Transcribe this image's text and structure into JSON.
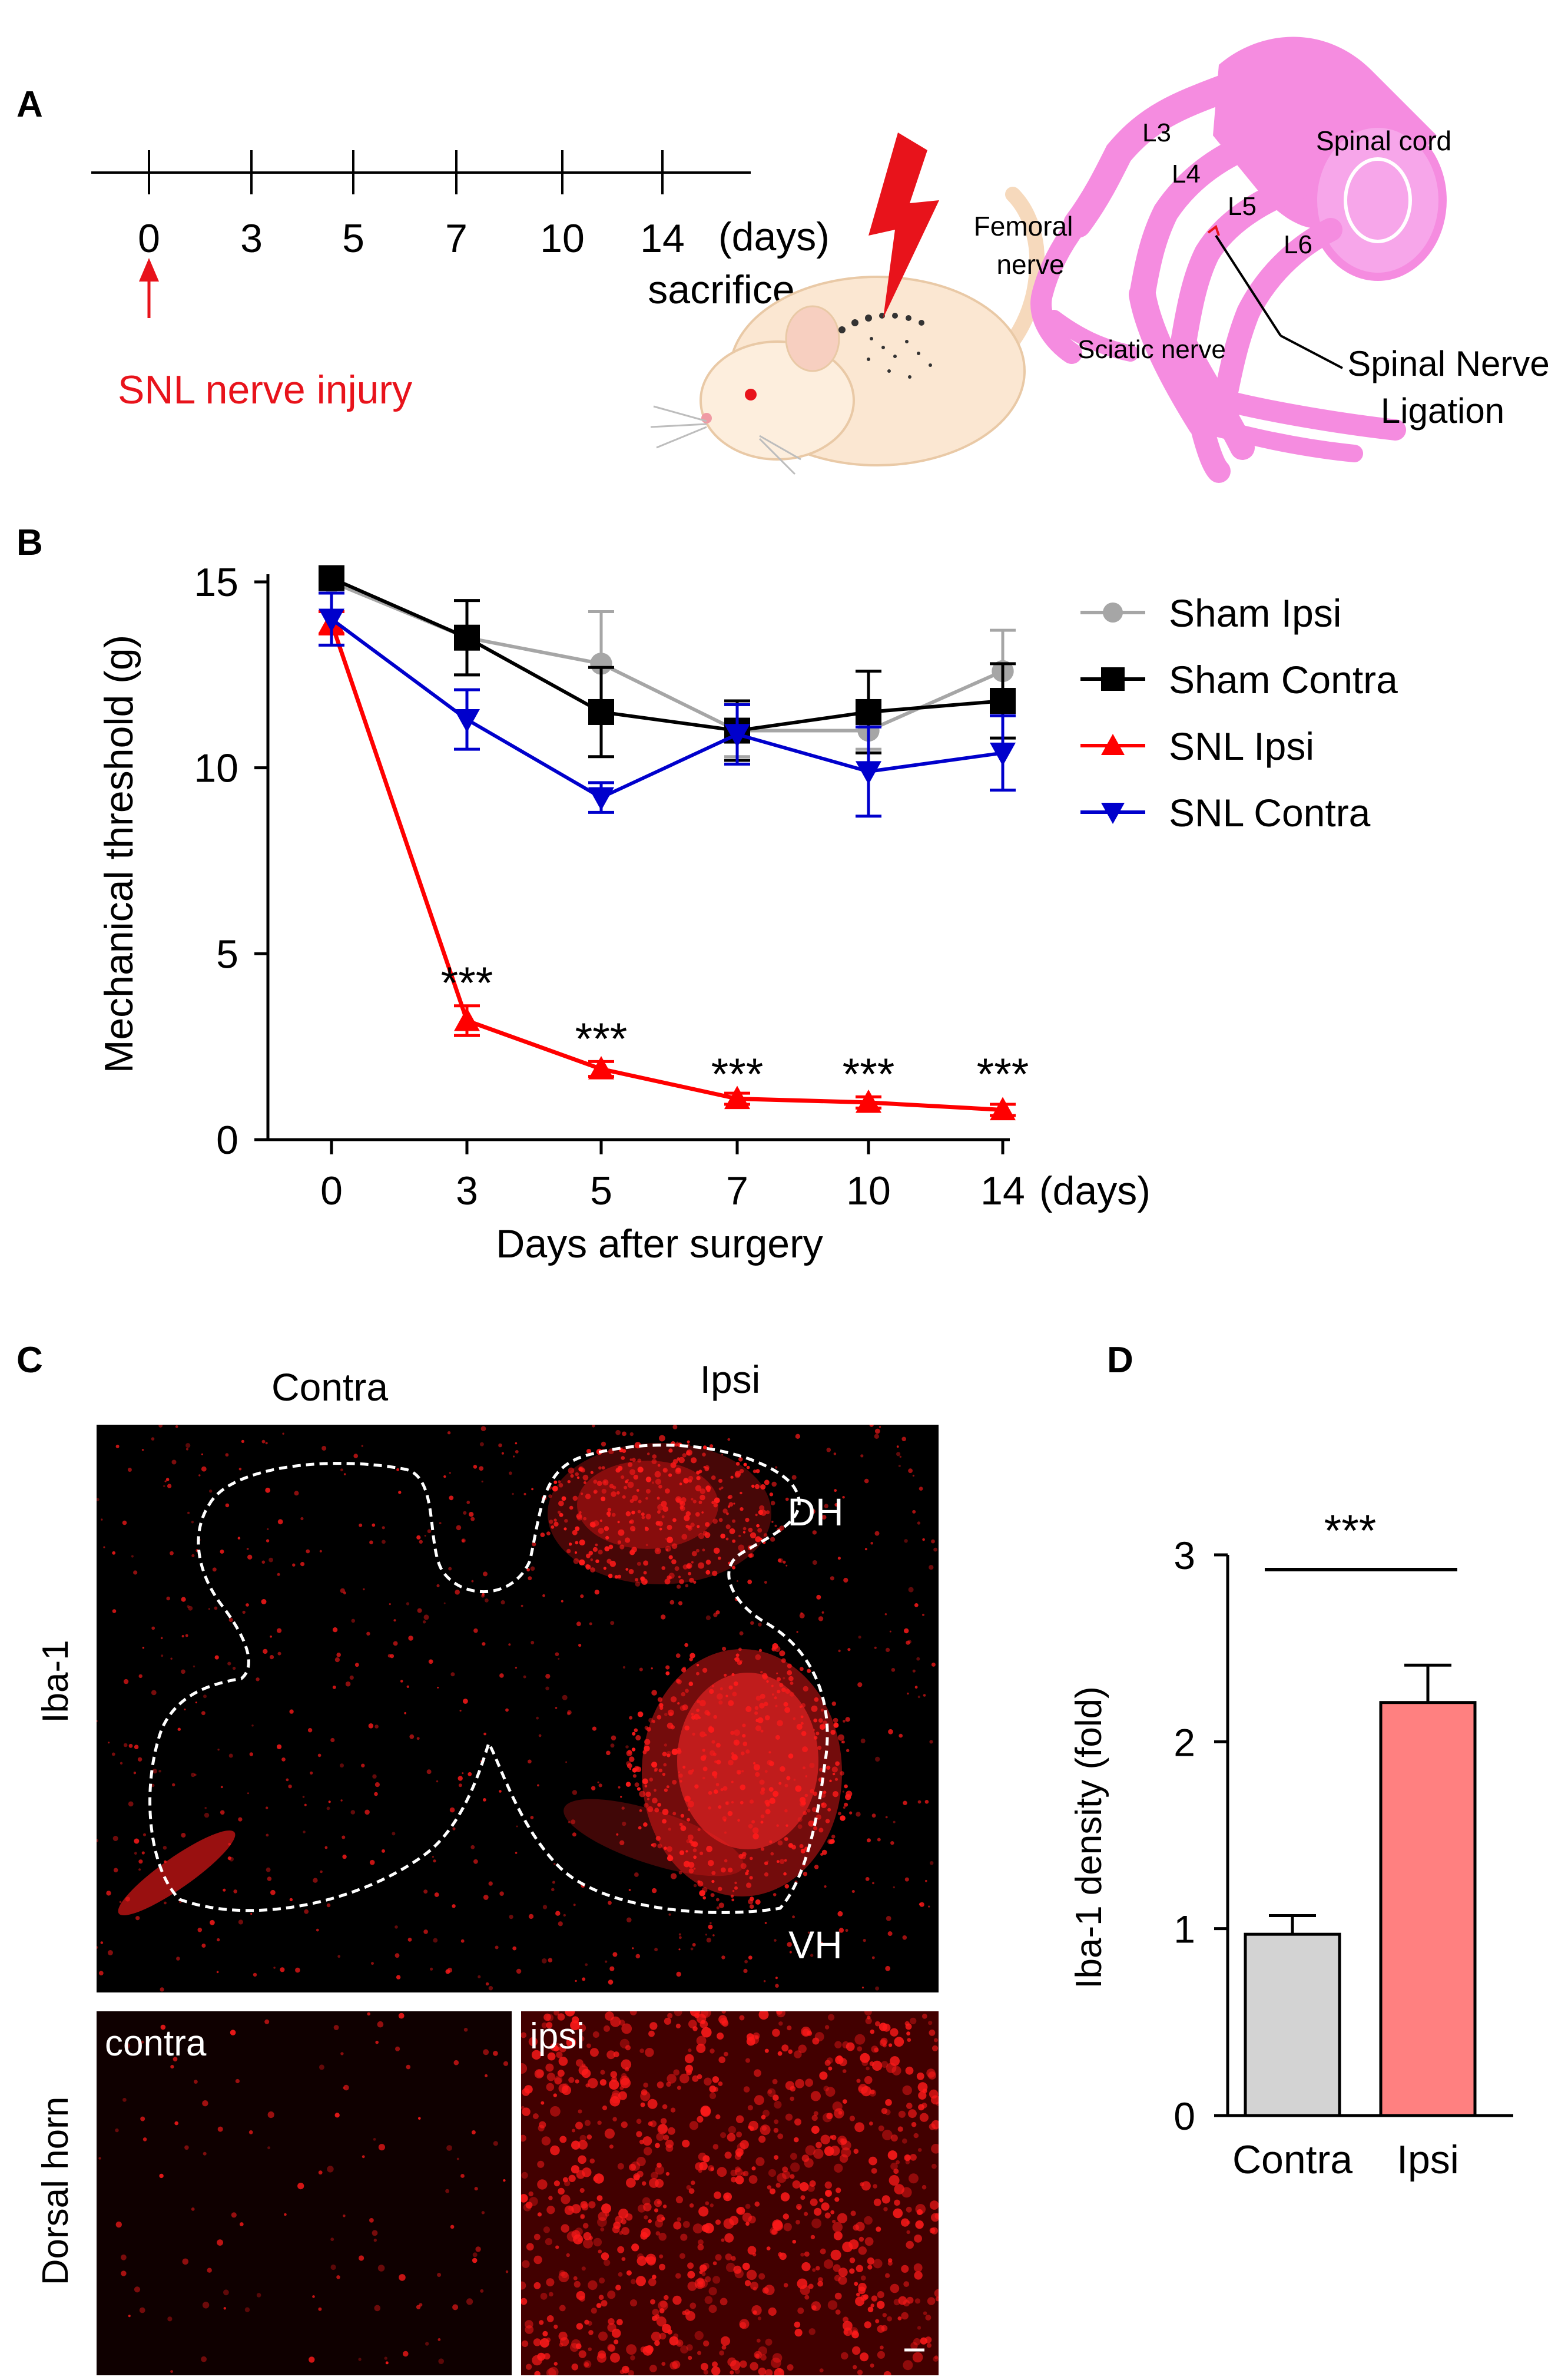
{
  "panels": {
    "A": "A",
    "B": "B",
    "C": "C",
    "D": "D"
  },
  "panel_a": {
    "ticks": [
      "0",
      "3",
      "5",
      "7",
      "10",
      "14"
    ],
    "unit": "(days)",
    "sacrifice": "sacrifice",
    "injury_label": "SNL nerve injury",
    "anatomy": {
      "l3": "L3",
      "l4": "L4",
      "l5": "L5",
      "l6": "L6",
      "spinal_cord": "Spinal cord",
      "femoral_1": "Femoral",
      "femoral_2": "nerve",
      "sciatic": "Sciatic nerve",
      "ligation_1": "Spinal Nerve",
      "ligation_2": "Ligation"
    },
    "colors": {
      "anatomy": "#f58ce0",
      "injury": "#e8131b",
      "mouse": "#fbe7d2"
    }
  },
  "panel_c": {
    "col_contra": "Contra",
    "col_ipsi": "Ipsi",
    "row_label": "Iba-1",
    "dh": "DH",
    "vh": "VH",
    "bottom_row_label": "Dorsal horn",
    "sub_contra": "contra",
    "sub_ipsi": "ipsi",
    "colors": {
      "stain": "#ff1a1a",
      "background": "#000000"
    }
  },
  "chart_data": [
    {
      "type": "line",
      "panel": "B",
      "x": [
        0,
        3,
        5,
        7,
        10,
        14
      ],
      "x_tick_labels": [
        "0",
        "3",
        "5",
        "7",
        "10",
        "14"
      ],
      "x_unit": "(days)",
      "xlabel": "Days after surgery",
      "ylabel": "Mechanical threshold  (g)",
      "ylim": [
        0,
        15
      ],
      "y_ticks": [
        "0",
        "5",
        "10",
        "15"
      ],
      "legend_position": "right",
      "series": [
        {
          "name": "Sham Ipsi",
          "marker": "circle",
          "color": "#a6a6a6",
          "values": [
            15.0,
            13.5,
            12.8,
            11.0,
            11.0,
            12.6
          ],
          "errors": [
            0.3,
            1.0,
            1.4,
            0.7,
            0.5,
            1.1
          ]
        },
        {
          "name": "Sham Contra",
          "marker": "square",
          "color": "#000000",
          "values": [
            15.1,
            13.5,
            11.5,
            11.0,
            11.5,
            11.8
          ],
          "errors": [
            0.2,
            1.0,
            1.2,
            0.8,
            1.1,
            1.0
          ]
        },
        {
          "name": "SNL Ipsi",
          "marker": "triangle-up",
          "color": "#ff0000",
          "values": [
            13.9,
            3.2,
            1.9,
            1.1,
            1.0,
            0.8
          ],
          "errors": [
            0.3,
            0.4,
            0.2,
            0.15,
            0.15,
            0.15
          ]
        },
        {
          "name": "SNL Contra",
          "marker": "triangle-down",
          "color": "#0000cc",
          "values": [
            14.0,
            11.3,
            9.2,
            10.9,
            9.9,
            10.4
          ],
          "errors": [
            0.7,
            0.8,
            0.4,
            0.8,
            1.2,
            1.0
          ]
        }
      ],
      "significance": [
        {
          "x": 3,
          "label": "***"
        },
        {
          "x": 5,
          "label": "***"
        },
        {
          "x": 7,
          "label": "***"
        },
        {
          "x": 10,
          "label": "***"
        },
        {
          "x": 14,
          "label": "***"
        }
      ]
    },
    {
      "type": "bar",
      "panel": "D",
      "categories": [
        "Contra",
        "Ipsi"
      ],
      "values": [
        0.97,
        2.21
      ],
      "errors": [
        0.1,
        0.2
      ],
      "colors": [
        "#d3d3d3",
        "#ff8080"
      ],
      "ylabel": "Iba-1 density (fold)",
      "ylim": [
        0,
        3
      ],
      "y_ticks": [
        "0",
        "1",
        "2",
        "3"
      ],
      "significance": "***"
    }
  ]
}
